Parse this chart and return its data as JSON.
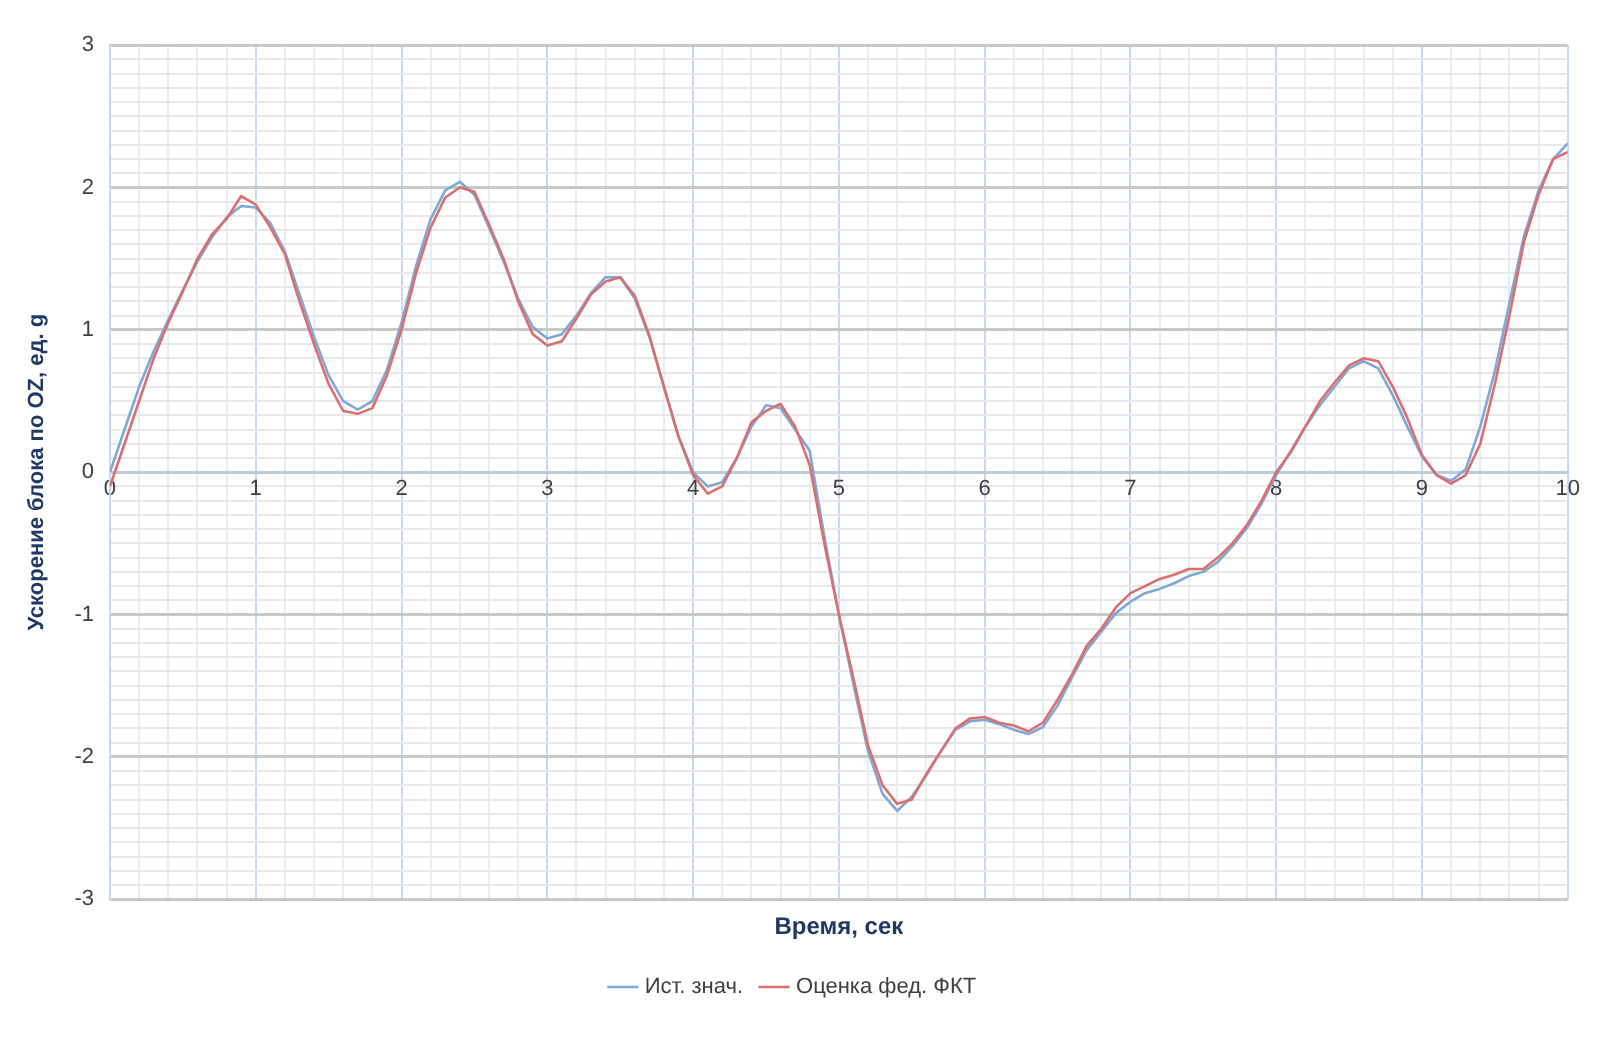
{
  "chart_data": {
    "type": "line",
    "xlabel": "Время, сек",
    "ylabel": "Ускорение блока по OZ, ед. g",
    "x": [
      0,
      0.1,
      0.2,
      0.3,
      0.4,
      0.5,
      0.6,
      0.7,
      0.8,
      0.9,
      1,
      1.1,
      1.2,
      1.3,
      1.4,
      1.5,
      1.6,
      1.7,
      1.8,
      1.9,
      2,
      2.1,
      2.2,
      2.3,
      2.4,
      2.5,
      2.6,
      2.7,
      2.8,
      2.9,
      3,
      3.1,
      3.2,
      3.3,
      3.4,
      3.5,
      3.6,
      3.7,
      3.8,
      3.9,
      4,
      4.1,
      4.2,
      4.3,
      4.4,
      4.5,
      4.6,
      4.7,
      4.8,
      4.9,
      5,
      5.1,
      5.2,
      5.3,
      5.4,
      5.5,
      5.6,
      5.7,
      5.8,
      5.9,
      6,
      6.1,
      6.2,
      6.3,
      6.4,
      6.5,
      6.6,
      6.7,
      6.8,
      6.9,
      7,
      7.1,
      7.2,
      7.3,
      7.4,
      7.5,
      7.6,
      7.7,
      7.8,
      7.9,
      8,
      8.1,
      8.2,
      8.3,
      8.4,
      8.5,
      8.6,
      8.7,
      8.8,
      8.9,
      9,
      9.1,
      9.2,
      9.3,
      9.4,
      9.5,
      9.6,
      9.7,
      9.8,
      9.9,
      10
    ],
    "series": [
      {
        "name": "Ист. знач.",
        "color": "#7fa7d8",
        "values": [
          0,
          0.3,
          0.6,
          0.85,
          1.07,
          1.28,
          1.48,
          1.65,
          1.79,
          1.87,
          1.86,
          1.75,
          1.55,
          1.25,
          0.95,
          0.68,
          0.5,
          0.44,
          0.5,
          0.72,
          1.05,
          1.45,
          1.78,
          1.98,
          2.04,
          1.95,
          1.72,
          1.48,
          1.22,
          1.02,
          0.94,
          0.97,
          1.1,
          1.26,
          1.37,
          1.37,
          1.22,
          0.95,
          0.6,
          0.25,
          0,
          -0.1,
          -0.07,
          0.1,
          0.32,
          0.47,
          0.45,
          0.3,
          0.15,
          -0.45,
          -1,
          -1.49,
          -1.96,
          -2.26,
          -2.38,
          -2.28,
          -2.13,
          -1.96,
          -1.81,
          -1.75,
          -1.74,
          -1.77,
          -1.81,
          -1.84,
          -1.79,
          -1.64,
          -1.44,
          -1.25,
          -1.12,
          -0.99,
          -0.91,
          -0.85,
          -0.82,
          -0.78,
          -0.73,
          -0.7,
          -0.63,
          -0.52,
          -0.39,
          -0.22,
          -0.02,
          0.15,
          0.32,
          0.47,
          0.6,
          0.73,
          0.78,
          0.73,
          0.54,
          0.32,
          0.11,
          -0.02,
          -0.06,
          0.02,
          0.32,
          0.71,
          1.19,
          1.66,
          1.98,
          2.2,
          2.31
        ]
      },
      {
        "name": "Оценка фед. ФКТ",
        "color": "#d9706d",
        "values": [
          -0.1,
          0.2,
          0.5,
          0.8,
          1.05,
          1.27,
          1.5,
          1.67,
          1.78,
          1.94,
          1.88,
          1.72,
          1.53,
          1.2,
          0.9,
          0.62,
          0.43,
          0.41,
          0.45,
          0.68,
          1,
          1.4,
          1.72,
          1.93,
          2,
          1.97,
          1.74,
          1.5,
          1.2,
          0.97,
          0.89,
          0.92,
          1.08,
          1.25,
          1.34,
          1.37,
          1.24,
          0.96,
          0.6,
          0.25,
          -0.02,
          -0.15,
          -0.1,
          0.1,
          0.35,
          0.43,
          0.48,
          0.32,
          0.05,
          -0.5,
          -1,
          -1.45,
          -1.92,
          -2.2,
          -2.33,
          -2.3,
          -2.12,
          -1.96,
          -1.8,
          -1.73,
          -1.72,
          -1.76,
          -1.78,
          -1.82,
          -1.76,
          -1.6,
          -1.42,
          -1.22,
          -1.1,
          -0.95,
          -0.85,
          -0.8,
          -0.75,
          -0.72,
          -0.68,
          -0.68,
          -0.6,
          -0.5,
          -0.37,
          -0.2,
          0,
          0.14,
          0.32,
          0.5,
          0.63,
          0.75,
          0.8,
          0.78,
          0.6,
          0.38,
          0.12,
          -0.02,
          -0.08,
          -0.02,
          0.2,
          0.62,
          1.1,
          1.62,
          1.95,
          2.2,
          2.25
        ]
      }
    ],
    "xlim": [
      0,
      10
    ],
    "xticks": [
      0,
      {
        "value": 0.2,
        "label": null
      },
      {
        "value": 0.4,
        "label": null
      },
      {
        "value": 0.6,
        "label": null
      },
      {
        "value": 0.8,
        "label": null
      },
      1,
      {
        "value": 1.2,
        "label": null
      },
      {
        "value": 1.4,
        "label": null
      },
      {
        "value": 1.6,
        "label": null
      },
      {
        "value": 1.8,
        "label": null
      },
      2,
      {
        "value": 2.2,
        "label": null
      },
      {
        "value": 2.4,
        "label": null
      },
      {
        "value": 2.6,
        "label": null
      },
      {
        "value": 2.8,
        "label": null
      },
      3,
      {
        "value": 3.2,
        "label": null
      },
      {
        "value": 3.4,
        "label": null
      },
      {
        "value": 3.6,
        "label": null
      },
      {
        "value": 3.8,
        "label": null
      },
      4,
      {
        "value": 4.2,
        "label": null
      },
      {
        "value": 4.4,
        "label": null
      },
      {
        "value": 4.6,
        "label": null
      },
      {
        "value": 4.8,
        "label": null
      },
      5,
      {
        "value": 5.2,
        "label": null
      },
      {
        "value": 5.4,
        "label": null
      },
      {
        "value": 5.6,
        "label": null
      },
      {
        "value": 5.8,
        "label": null
      },
      6,
      {
        "value": 6.2,
        "label": null
      },
      {
        "value": 6.4,
        "label": null
      },
      {
        "value": 6.6,
        "label": null
      },
      {
        "value": 6.8,
        "label": null
      },
      7,
      {
        "value": 7.2,
        "label": null
      },
      {
        "value": 7.4,
        "label": null
      },
      {
        "value": 7.6,
        "label": null
      },
      {
        "value": 7.8,
        "label": null
      },
      8,
      {
        "value": 8.2,
        "label": null
      },
      {
        "value": 8.4,
        "label": null
      },
      {
        "value": 8.6,
        "label": null
      },
      {
        "value": 8.8,
        "label": null
      },
      9,
      {
        "value": 9.2,
        "label": null
      },
      {
        "value": 9.4,
        "label": null
      },
      {
        "value": 9.6,
        "label": null
      },
      {
        "value": 9.8,
        "label": null
      },
      10
    ],
    "ylim": [
      -3,
      3
    ],
    "yticks": [
      -3,
      {
        "value": -2.9,
        "label": null
      },
      {
        "value": -2.8,
        "label": null
      },
      {
        "value": -2.7,
        "label": null
      },
      {
        "value": -2.6,
        "label": null
      },
      {
        "value": -2.5,
        "label": null
      },
      {
        "value": -2.4,
        "label": null
      },
      {
        "value": -2.3,
        "label": null
      },
      {
        "value": -2.2,
        "label": null
      },
      {
        "value": -2.1,
        "label": null
      },
      -2,
      {
        "value": -1.9,
        "label": null
      },
      {
        "value": -1.8,
        "label": null
      },
      {
        "value": -1.7,
        "label": null
      },
      {
        "value": -1.6,
        "label": null
      },
      {
        "value": -1.5,
        "label": null
      },
      {
        "value": -1.4,
        "label": null
      },
      {
        "value": -1.3,
        "label": null
      },
      {
        "value": -1.2,
        "label": null
      },
      {
        "value": -1.1,
        "label": null
      },
      -1,
      {
        "value": -0.9,
        "label": null
      },
      {
        "value": -0.8,
        "label": null
      },
      {
        "value": -0.7,
        "label": null
      },
      {
        "value": -0.6,
        "label": null
      },
      {
        "value": -0.5,
        "label": null
      },
      {
        "value": -0.4,
        "label": null
      },
      {
        "value": -0.3,
        "label": null
      },
      {
        "value": -0.2,
        "label": null
      },
      {
        "value": -0.1,
        "label": null
      },
      0,
      {
        "value": 0.1,
        "label": null
      },
      {
        "value": 0.2,
        "label": null
      },
      {
        "value": 0.3,
        "label": null
      },
      {
        "value": 0.4,
        "label": null
      },
      {
        "value": 0.5,
        "label": null
      },
      {
        "value": 0.6,
        "label": null
      },
      {
        "value": 0.7,
        "label": null
      },
      {
        "value": 0.8,
        "label": null
      },
      {
        "value": 0.9,
        "label": null
      },
      1,
      {
        "value": 1.1,
        "label": null
      },
      {
        "value": 1.2,
        "label": null
      },
      {
        "value": 1.3,
        "label": null
      },
      {
        "value": 1.4,
        "label": null
      },
      {
        "value": 1.5,
        "label": null
      },
      {
        "value": 1.6,
        "label": null
      },
      {
        "value": 1.7,
        "label": null
      },
      {
        "value": 1.8,
        "label": null
      },
      {
        "value": 1.9,
        "label": null
      },
      2,
      {
        "value": 2.1,
        "label": null
      },
      {
        "value": 2.2,
        "label": null
      },
      {
        "value": 2.3,
        "label": null
      },
      {
        "value": 2.4,
        "label": null
      },
      {
        "value": 2.5,
        "label": null
      },
      {
        "value": 2.6,
        "label": null
      },
      {
        "value": 2.7,
        "label": null
      },
      {
        "value": 2.8,
        "label": null
      },
      {
        "value": 2.9,
        "label": null
      },
      3
    ],
    "grid": true,
    "legend": "bottom",
    "marker": "none",
    "line_style": "solid"
  }
}
